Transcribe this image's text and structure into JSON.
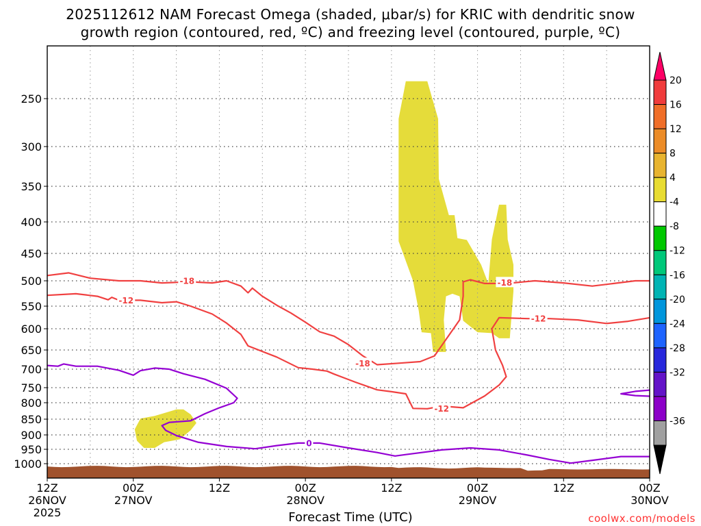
{
  "title_line1": "2025112612 NAM Forecast Omega (shaded, μbar/s) for KRIC with dendritic snow",
  "title_line2": "growth region (contoured, red, ºC) and freezing level (contoured, purple, ºC)",
  "credit": "coolwx.com/models",
  "chart_data": {
    "type": "contour",
    "xlabel": "Forecast Time (UTC)",
    "xlim": [
      0,
      84
    ],
    "x_ticks": [
      {
        "h": 0,
        "line1": "12Z",
        "line2": "26NOV",
        "line3": "2025"
      },
      {
        "h": 12,
        "line1": "00Z",
        "line2": "27NOV",
        "line3": ""
      },
      {
        "h": 24,
        "line1": "12Z",
        "line2": "",
        "line3": ""
      },
      {
        "h": 36,
        "line1": "00Z",
        "line2": "28NOV",
        "line3": ""
      },
      {
        "h": 48,
        "line1": "12Z",
        "line2": "",
        "line3": ""
      },
      {
        "h": 60,
        "line1": "00Z",
        "line2": "29NOV",
        "line3": ""
      },
      {
        "h": 72,
        "line1": "12Z",
        "line2": "",
        "line3": ""
      },
      {
        "h": 84,
        "line1": "00Z",
        "line2": "30NOV",
        "line3": ""
      }
    ],
    "y_ticks": [
      250,
      300,
      350,
      400,
      450,
      500,
      550,
      600,
      650,
      700,
      750,
      800,
      850,
      900,
      950,
      1000
    ],
    "ylim": [
      200,
      1035
    ],
    "colorbar": {
      "labels": [
        "20",
        "16",
        "12",
        "8",
        "4",
        "-4",
        "-8",
        "-12",
        "-16",
        "-20",
        "-24",
        "-28",
        "-32",
        "-36"
      ],
      "colors": [
        "#ff0066",
        "#f03c3c",
        "#f06e28",
        "#ec8c28",
        "#e8b430",
        "#e8dc32",
        "#ffffff",
        "#00c800",
        "#00c87a",
        "#00b4b4",
        "#0096dc",
        "#1e64ff",
        "#2828dc",
        "#6414c8",
        "#8c00c8",
        "#a0a0a0",
        "#000000"
      ]
    },
    "contour_labels": {
      "m18": "-18",
      "m12": "-12",
      "zero": "0"
    },
    "series": [
      {
        "name": "-18",
        "color": "#f04040",
        "points": [
          [
            0,
            490
          ],
          [
            3,
            485
          ],
          [
            6,
            495
          ],
          [
            10,
            500
          ],
          [
            13,
            500
          ],
          [
            16,
            504
          ],
          [
            20,
            502
          ],
          [
            23,
            504
          ],
          [
            25,
            500
          ],
          [
            27,
            510
          ],
          [
            28,
            523
          ],
          [
            28.6,
            514
          ],
          [
            30,
            530
          ],
          [
            32,
            548
          ],
          [
            34,
            565
          ],
          [
            36,
            585
          ],
          [
            38,
            607
          ],
          [
            40,
            617
          ],
          [
            42,
            637
          ],
          [
            44,
            665
          ],
          [
            46,
            688
          ],
          [
            49,
            684
          ],
          [
            52,
            680
          ],
          [
            54,
            665
          ],
          [
            56,
            615
          ],
          [
            57.5,
            580
          ],
          [
            58,
            530
          ],
          [
            58,
            502
          ],
          [
            59,
            498
          ],
          [
            61,
            505
          ],
          [
            64,
            505
          ],
          [
            68,
            500
          ],
          [
            72,
            504
          ],
          [
            76,
            510
          ],
          [
            79,
            505
          ],
          [
            82,
            500
          ],
          [
            84,
            500
          ]
        ]
      },
      {
        "name": "-12",
        "color": "#f04040",
        "points": [
          [
            0,
            528
          ],
          [
            4,
            525
          ],
          [
            7,
            530
          ],
          [
            8.5,
            537
          ],
          [
            9,
            532
          ],
          [
            10,
            538
          ],
          [
            13,
            538
          ],
          [
            16,
            543
          ],
          [
            18,
            541
          ],
          [
            20,
            550
          ],
          [
            23,
            567
          ],
          [
            25,
            587
          ],
          [
            27,
            613
          ],
          [
            28,
            640
          ],
          [
            32,
            668
          ],
          [
            35,
            696
          ],
          [
            37,
            700
          ],
          [
            39,
            705
          ],
          [
            40,
            713
          ],
          [
            43,
            735
          ],
          [
            46,
            757
          ],
          [
            48,
            763
          ],
          [
            50,
            770
          ],
          [
            51,
            817
          ],
          [
            53,
            818
          ],
          [
            55,
            810
          ],
          [
            58,
            815
          ],
          [
            61,
            777
          ],
          [
            63,
            743
          ],
          [
            64,
            720
          ],
          [
            63.5,
            690
          ],
          [
            62.5,
            650
          ],
          [
            62,
            600
          ],
          [
            63,
            575
          ],
          [
            67,
            577
          ],
          [
            70,
            577
          ],
          [
            74,
            580
          ],
          [
            78,
            588
          ],
          [
            81,
            583
          ],
          [
            84,
            575
          ]
        ]
      },
      {
        "name": "0",
        "color": "#9400d3",
        "points": [
          [
            0,
            690
          ],
          [
            1.5,
            692
          ],
          [
            2.3,
            686
          ],
          [
            4,
            692
          ],
          [
            7,
            692
          ],
          [
            10,
            703
          ],
          [
            12,
            716
          ],
          [
            13,
            704
          ],
          [
            15,
            697
          ],
          [
            17,
            700
          ],
          [
            19,
            712
          ],
          [
            22,
            727
          ],
          [
            25,
            752
          ],
          [
            26.5,
            785
          ],
          [
            26,
            800
          ],
          [
            24,
            815
          ],
          [
            22,
            833
          ],
          [
            20,
            855
          ],
          [
            17,
            860
          ],
          [
            16,
            870
          ],
          [
            16.5,
            885
          ],
          [
            18,
            902
          ],
          [
            21,
            925
          ],
          [
            25,
            940
          ],
          [
            29,
            948
          ],
          [
            32,
            937
          ],
          [
            35,
            928
          ],
          [
            36.5,
            928
          ],
          [
            38,
            928
          ],
          [
            42,
            945
          ],
          [
            46,
            961
          ],
          [
            48.5,
            973
          ],
          [
            50,
            968
          ],
          [
            55,
            952
          ],
          [
            59,
            945
          ],
          [
            63,
            952
          ],
          [
            67,
            970
          ],
          [
            70,
            985
          ],
          [
            73,
            998
          ],
          [
            76,
            988
          ],
          [
            80,
            975
          ],
          [
            84,
            975
          ]
        ]
      },
      {
        "name": "0-right",
        "color": "#9400d3",
        "points": [
          [
            84,
            758
          ],
          [
            82,
            762
          ],
          [
            80,
            770
          ],
          [
            82,
            776
          ],
          [
            84,
            778
          ]
        ]
      }
    ],
    "shaded_regions": [
      {
        "name": "omega-4-8-upper",
        "color": "#e5dc3a",
        "points": [
          [
            49,
            430
          ],
          [
            49,
            270
          ],
          [
            50,
            234
          ],
          [
            53,
            234
          ],
          [
            54.5,
            270
          ],
          [
            54.6,
            340
          ],
          [
            56,
            390
          ],
          [
            56.8,
            390
          ],
          [
            57.2,
            425
          ],
          [
            58.5,
            428
          ],
          [
            60.5,
            470
          ],
          [
            61.5,
            505
          ],
          [
            62,
            427
          ],
          [
            63,
            375
          ],
          [
            64,
            375
          ],
          [
            64.2,
            427
          ],
          [
            65,
            470
          ],
          [
            65,
            520
          ],
          [
            64.5,
            622
          ],
          [
            63,
            622
          ],
          [
            62,
            610
          ],
          [
            60,
            608
          ],
          [
            58,
            582
          ],
          [
            57.5,
            530
          ],
          [
            56.5,
            525
          ],
          [
            55.6,
            530
          ],
          [
            55.3,
            580
          ],
          [
            55.6,
            655
          ],
          [
            53.8,
            655
          ],
          [
            53.5,
            610
          ],
          [
            52.2,
            608
          ],
          [
            51.8,
            560
          ],
          [
            51,
            500
          ]
        ]
      },
      {
        "name": "omega-4-8-lower",
        "color": "#e5dc3a",
        "points": [
          [
            12.2,
            882
          ],
          [
            13,
            848
          ],
          [
            15,
            840
          ],
          [
            18,
            820
          ],
          [
            19,
            820
          ],
          [
            20,
            835
          ],
          [
            20.8,
            862
          ],
          [
            20,
            885
          ],
          [
            18.5,
            915
          ],
          [
            16.3,
            925
          ],
          [
            15,
            945
          ],
          [
            13.5,
            945
          ],
          [
            12.5,
            920
          ]
        ]
      }
    ],
    "terrain": {
      "color": "#a0522d",
      "top_pressure": 1010
    }
  }
}
